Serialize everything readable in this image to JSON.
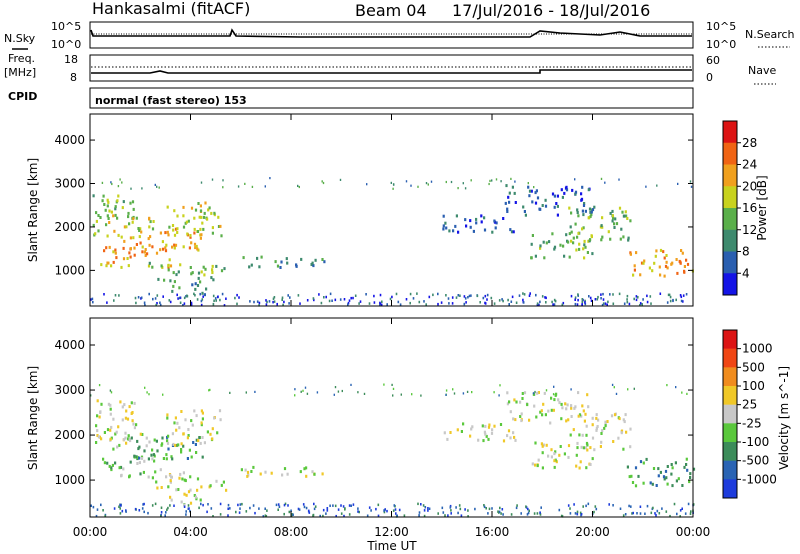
{
  "header": {
    "station": "Hankasalmi (fitACF)",
    "beam": "Beam 04",
    "date_range": "17/Jul/2016 - 18/Jul/2016"
  },
  "top_panels": {
    "nsky_label": "N.Sky",
    "nsky_ticks": [
      "10^5",
      "10^0"
    ],
    "nsearch_label": "N.Search",
    "nsearch_ticks": [
      "10^5",
      "10^0"
    ],
    "freq_label": "Freq.",
    "freq_unit": "[MHz]",
    "freq_ticks": [
      "18",
      "8"
    ],
    "nave_label": "Nave",
    "nave_ticks": [
      "60",
      "0"
    ],
    "cpid_label": "CPID",
    "cpid_text": "normal (fast stereo) 153"
  },
  "chart_data": [
    {
      "type": "heatmap",
      "name": "power",
      "ylabel": "Slant Range [km]",
      "xlabel": "Time UT",
      "x_ticks": [
        "00:00",
        "04:00",
        "08:00",
        "12:00",
        "16:00",
        "20:00",
        "00:00"
      ],
      "x_range_hours": [
        0,
        24
      ],
      "y_ticks": [
        1000,
        2000,
        3000,
        4000
      ],
      "ylim": [
        180,
        4600
      ],
      "colorbar": {
        "label": "Power [dB]",
        "ticks": [
          "4",
          "8",
          "12",
          "16",
          "20",
          "24",
          "28"
        ],
        "colors": [
          "#1414e6",
          "#2a5fb0",
          "#3e8a6e",
          "#5aaf4a",
          "#c8d21e",
          "#f0a01e",
          "#f06414",
          "#dc1414"
        ]
      },
      "regions": [
        {
          "t0": 0.1,
          "t1": 1.8,
          "r0": 2200,
          "r1": 2800,
          "level": 3
        },
        {
          "t0": 0.1,
          "t1": 2.6,
          "r0": 1700,
          "r1": 2300,
          "level": 4
        },
        {
          "t0": 0.3,
          "t1": 3.2,
          "r0": 1100,
          "r1": 1600,
          "level": 5
        },
        {
          "t0": 1.6,
          "t1": 4.5,
          "r0": 1500,
          "r1": 2000,
          "level": 5
        },
        {
          "t0": 2.3,
          "t1": 5.4,
          "r0": 800,
          "r1": 1200,
          "level": 3
        },
        {
          "t0": 3.0,
          "t1": 5.2,
          "r0": 1800,
          "r1": 2600,
          "level": 4
        },
        {
          "t0": 3.1,
          "t1": 4.6,
          "r0": 450,
          "r1": 800,
          "level": 2
        },
        {
          "t0": 6.0,
          "t1": 9.3,
          "r0": 1100,
          "r1": 1350,
          "level": 2
        },
        {
          "t0": 14.0,
          "t1": 17.0,
          "r0": 1900,
          "r1": 2300,
          "level": 1
        },
        {
          "t0": 17.5,
          "t1": 20.0,
          "r0": 1300,
          "r1": 1900,
          "level": 3
        },
        {
          "t0": 19.0,
          "t1": 21.5,
          "r0": 1700,
          "r1": 2500,
          "level": 3
        },
        {
          "t0": 21.3,
          "t1": 24.0,
          "r0": 900,
          "r1": 1500,
          "level": 5
        },
        {
          "t0": 16.5,
          "t1": 20.0,
          "r0": 2300,
          "r1": 3000,
          "level": 1
        }
      ]
    },
    {
      "type": "heatmap",
      "name": "velocity",
      "ylabel": "Slant Range [km]",
      "xlabel": "Time UT",
      "x_ticks": [
        "00:00",
        "04:00",
        "08:00",
        "12:00",
        "16:00",
        "20:00",
        "00:00"
      ],
      "x_range_hours": [
        0,
        24
      ],
      "y_ticks": [
        1000,
        2000,
        3000,
        4000
      ],
      "ylim": [
        180,
        4600
      ],
      "colorbar": {
        "label": "Velocity [m s^-1]",
        "ticks": [
          "1000",
          "500",
          "100",
          "25",
          "-25",
          "-100",
          "-500",
          "-1000"
        ],
        "colors": [
          "#1e3cdc",
          "#2a64b4",
          "#3c8c5a",
          "#5ac83c",
          "#c8c8c8",
          "#f0c828",
          "#f08c1e",
          "#f04614",
          "#dc1414"
        ]
      },
      "regions": [
        {
          "t0": 0.1,
          "t1": 1.8,
          "r0": 2200,
          "r1": 2800,
          "level": 4
        },
        {
          "t0": 0.1,
          "t1": 2.6,
          "r0": 1700,
          "r1": 2300,
          "level": 4
        },
        {
          "t0": 0.3,
          "t1": 3.2,
          "r0": 1100,
          "r1": 1600,
          "level": 3
        },
        {
          "t0": 1.6,
          "t1": 4.5,
          "r0": 1500,
          "r1": 2000,
          "level": 2
        },
        {
          "t0": 2.3,
          "t1": 5.4,
          "r0": 800,
          "r1": 1200,
          "level": 4
        },
        {
          "t0": 3.0,
          "t1": 5.2,
          "r0": 1800,
          "r1": 2600,
          "level": 4
        },
        {
          "t0": 3.1,
          "t1": 4.6,
          "r0": 450,
          "r1": 800,
          "level": 4
        },
        {
          "t0": 6.0,
          "t1": 9.3,
          "r0": 1100,
          "r1": 1350,
          "level": 4
        },
        {
          "t0": 14.0,
          "t1": 17.0,
          "r0": 1900,
          "r1": 2300,
          "level": 4
        },
        {
          "t0": 17.5,
          "t1": 20.0,
          "r0": 1300,
          "r1": 1900,
          "level": 4
        },
        {
          "t0": 19.0,
          "t1": 21.5,
          "r0": 1700,
          "r1": 2500,
          "level": 4
        },
        {
          "t0": 21.3,
          "t1": 24.0,
          "r0": 900,
          "r1": 1500,
          "level": 2
        },
        {
          "t0": 16.5,
          "t1": 20.0,
          "r0": 2300,
          "r1": 3000,
          "level": 4
        }
      ]
    }
  ]
}
